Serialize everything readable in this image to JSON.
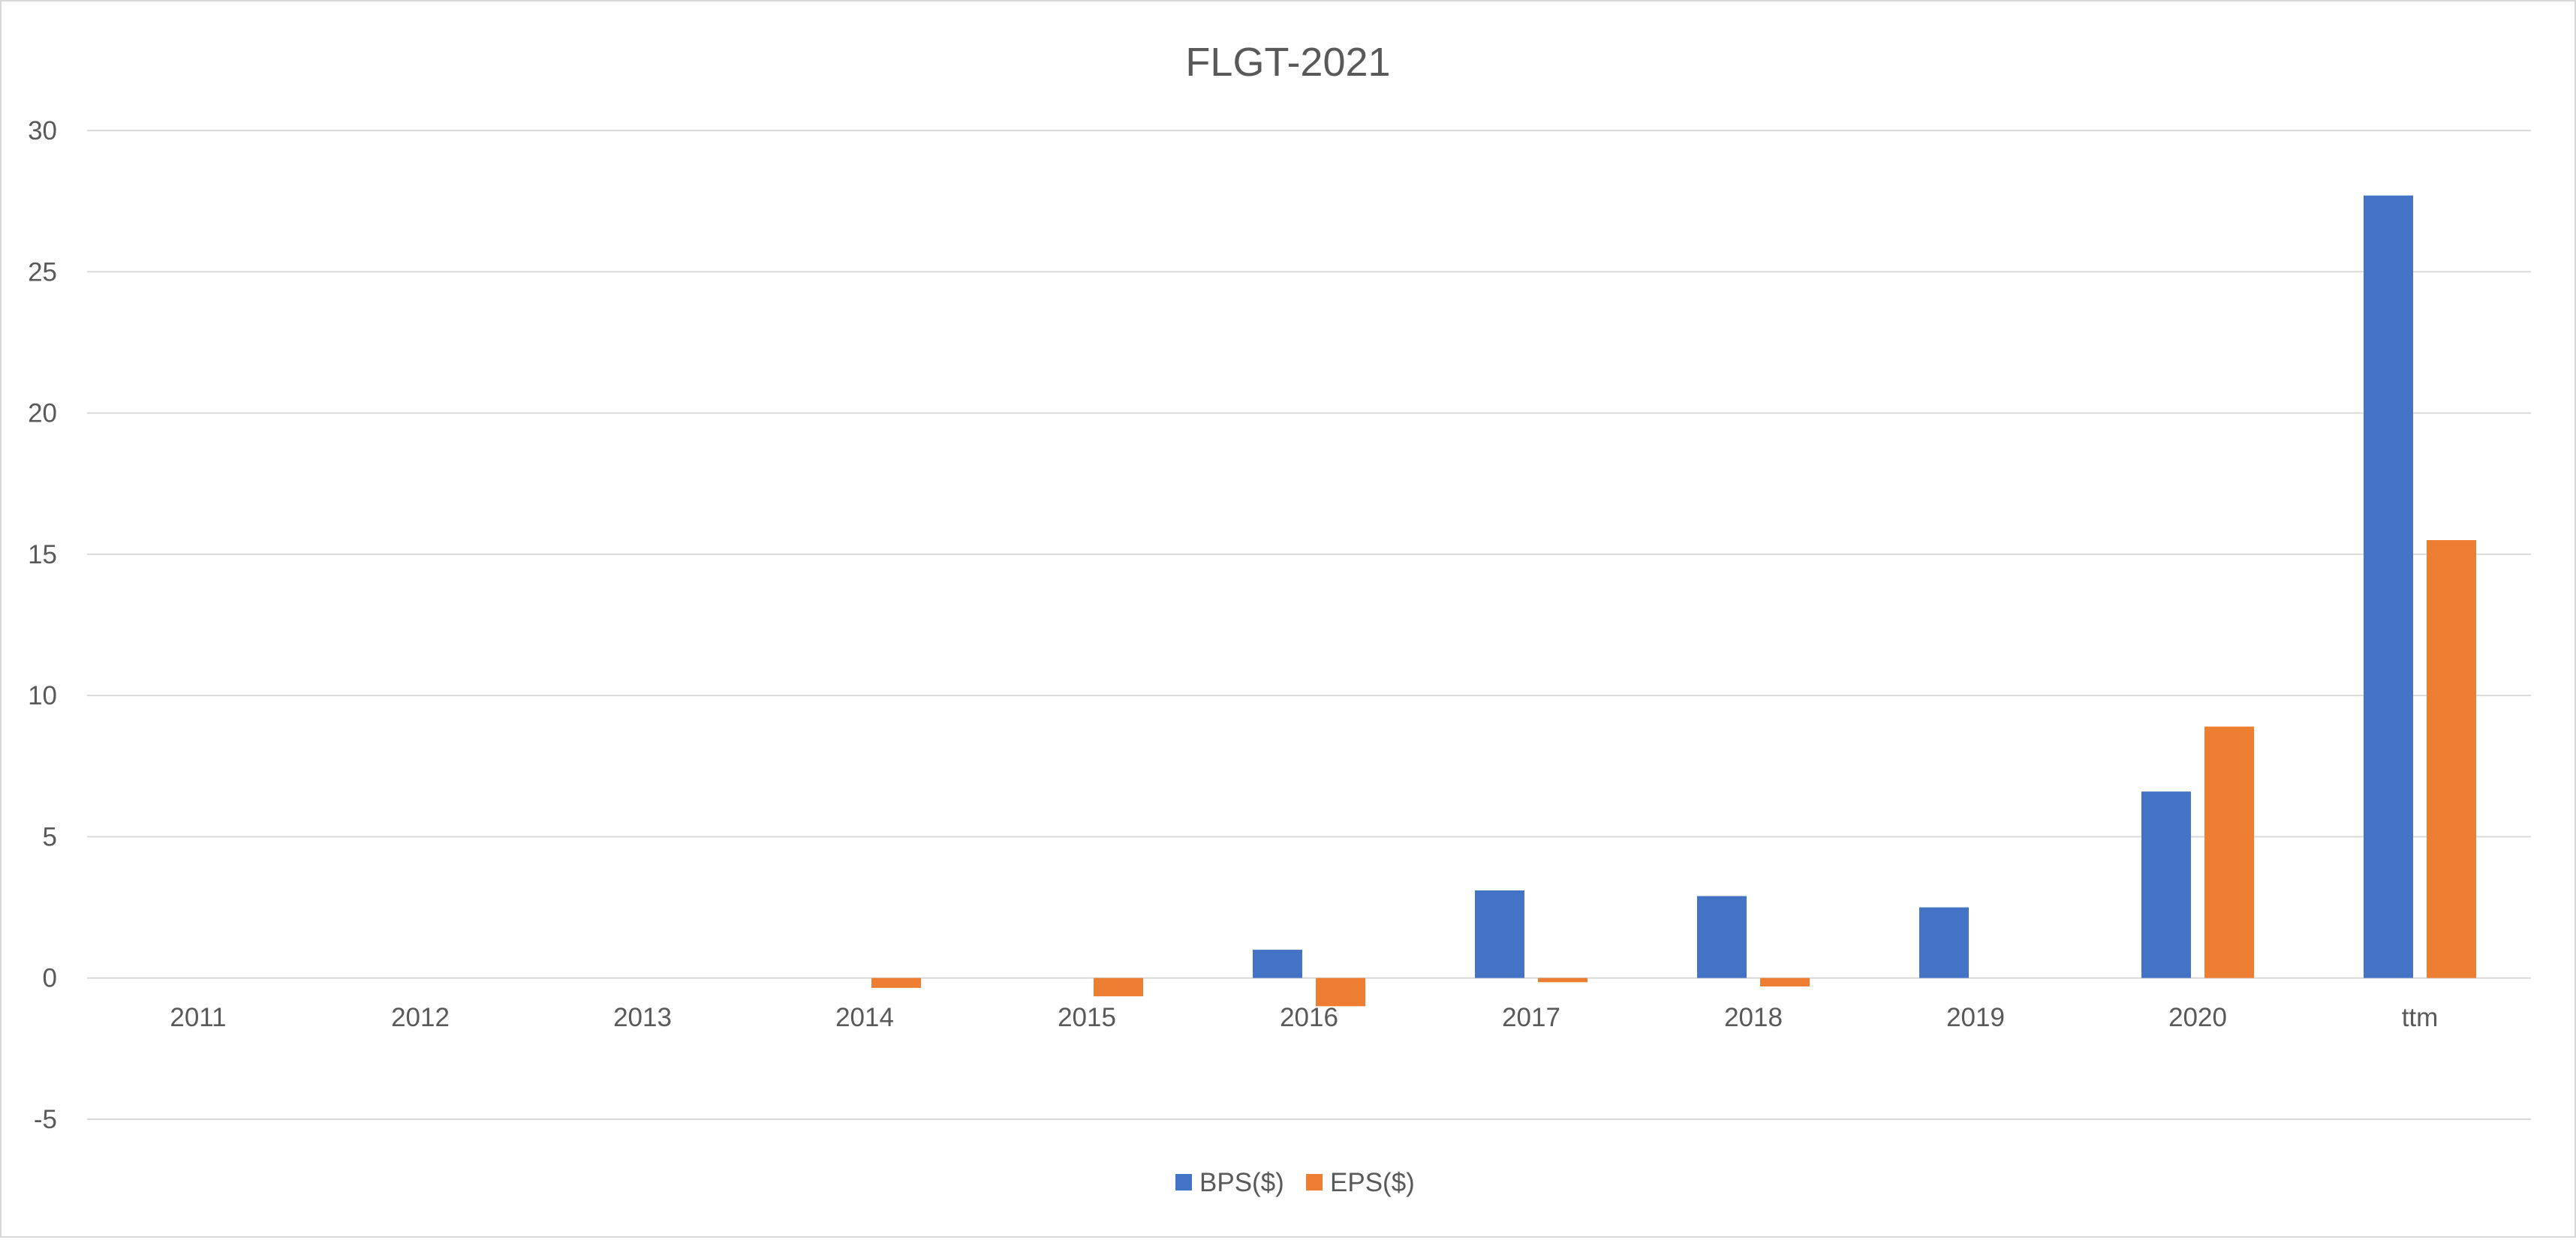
{
  "chart_data": {
    "type": "bar",
    "title": "FLGT-2021",
    "categories": [
      "2011",
      "2012",
      "2013",
      "2014",
      "2015",
      "2016",
      "2017",
      "2018",
      "2019",
      "2020",
      "ttm"
    ],
    "series": [
      {
        "name": "BPS($)",
        "color": "#4472c4",
        "values": [
          0,
          0,
          0,
          0,
          0,
          1.0,
          3.1,
          2.9,
          2.5,
          6.6,
          27.7
        ]
      },
      {
        "name": "EPS($)",
        "color": "#ed7d31",
        "values": [
          0,
          0,
          0,
          -0.35,
          -0.65,
          -1.0,
          -0.15,
          -0.3,
          0,
          8.9,
          15.5
        ]
      }
    ],
    "ylim": [
      -5,
      30
    ],
    "yticks": [
      "-5",
      "0",
      "5",
      "10",
      "15",
      "20",
      "25",
      "30"
    ],
    "xlabel": "",
    "ylabel": "",
    "grid": true,
    "legend_position": "bottom-center"
  }
}
